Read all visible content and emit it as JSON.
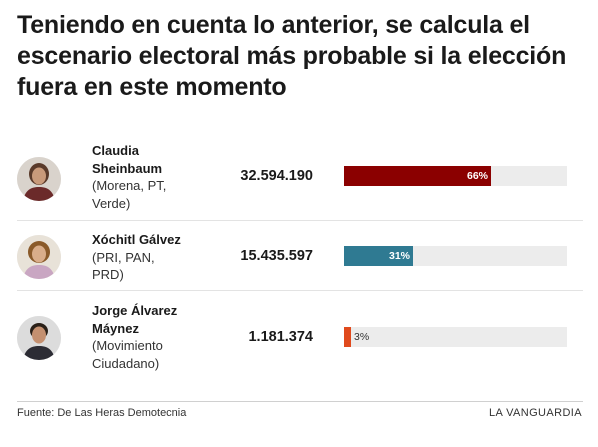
{
  "title": "Teniendo en cuenta lo anterior, se calcula el escenario electoral más probable si la elección fuera en este momento",
  "footer": {
    "source": "Fuente: De Las Heras Demotecnia",
    "brand": "LA VANGUARDIA"
  },
  "colors": {
    "sheinbaum": "#8b0000",
    "galvez": "#2f7a92",
    "maynez": "#e04a1d",
    "track": "#ececec"
  },
  "candidates": [
    {
      "name_line1": "Claudia",
      "name_line2": "Sheinbaum",
      "party_line1": "(Morena, PT,",
      "party_line2": "Verde)",
      "votes": "32.594.190",
      "pct_label": "66%",
      "avatar_icon": "candidate-photo-icon"
    },
    {
      "name_line1": "Xóchitl Gálvez",
      "name_line2": "",
      "party_line1": "(PRI, PAN,",
      "party_line2": "PRD)",
      "votes": "15.435.597",
      "pct_label": "31%",
      "avatar_icon": "candidate-photo-icon"
    },
    {
      "name_line1": "Jorge Álvarez",
      "name_line2": "Máynez",
      "party_line1": "(Movimiento",
      "party_line2": "Ciudadano)",
      "votes": "1.181.374",
      "pct_label": "3%",
      "avatar_icon": "candidate-photo-icon"
    }
  ],
  "chart_data": {
    "type": "bar",
    "orientation": "horizontal",
    "categories": [
      "Claudia Sheinbaum",
      "Xóchitl Gálvez",
      "Jorge Álvarez Máynez"
    ],
    "values": [
      66,
      31,
      3
    ],
    "votes": [
      32594190,
      15435597,
      1181374
    ],
    "unit": "%",
    "xlim": [
      0,
      100
    ],
    "colors": [
      "#8b0000",
      "#2f7a92",
      "#e04a1d"
    ]
  }
}
